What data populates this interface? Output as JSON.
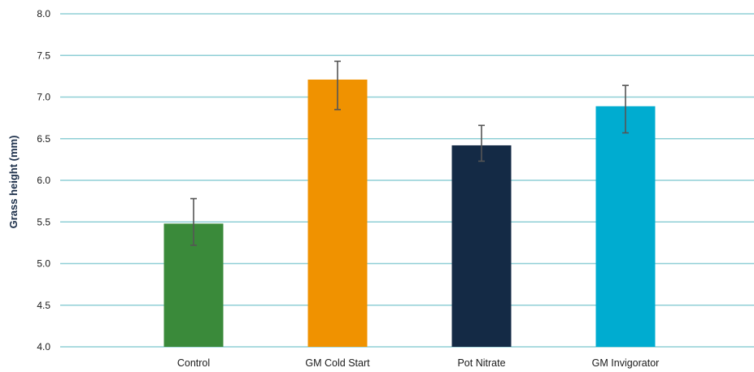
{
  "chart_data": {
    "type": "bar",
    "title": "",
    "xlabel": "",
    "ylabel": "Grass height (mm)",
    "ylim": [
      4.0,
      8.0
    ],
    "yticks": [
      "4.0",
      "4.5",
      "5.0",
      "5.5",
      "6.0",
      "6.5",
      "7.0",
      "7.5",
      "8.0"
    ],
    "grid": true,
    "legend": "none",
    "categories": [
      "Control",
      "GM Cold Start",
      "Pot Nitrate",
      "GM Invigorator"
    ],
    "values": [
      5.48,
      7.21,
      6.42,
      6.89
    ],
    "error_low": [
      5.22,
      6.85,
      6.23,
      6.57
    ],
    "error_high": [
      5.78,
      7.43,
      6.66,
      7.14
    ],
    "colors": [
      "#3a8a3a",
      "#f09200",
      "#142a45",
      "#00acd0"
    ],
    "gridline_color": "#8fcfd6",
    "errorbar_color": "#555555"
  }
}
